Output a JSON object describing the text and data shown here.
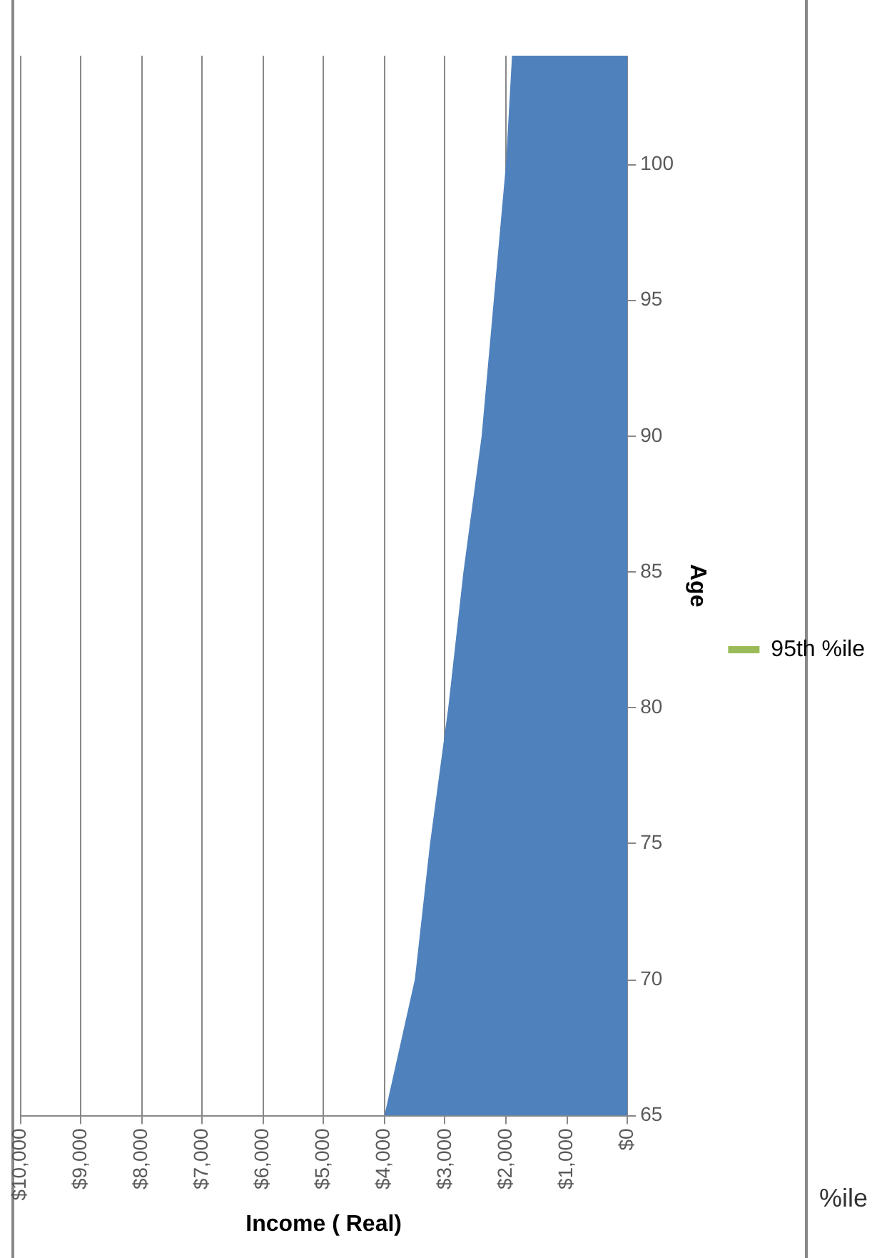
{
  "chart_data": {
    "type": "area",
    "orientation": "horizontal",
    "xlabel": "Income ( Real)",
    "ylabel": "Age",
    "x": [
      65,
      70,
      75,
      80,
      85,
      90,
      95,
      100,
      104
    ],
    "series": [
      {
        "color": "#4f81bd",
        "values": [
          4000,
          3500,
          3250,
          2950,
          2700,
          2400,
          2200,
          2000,
          1900
        ]
      },
      {
        "type": "line",
        "name": "95th %ile",
        "color": "#9bbb59",
        "values": [
          null,
          null,
          null,
          null,
          null,
          null,
          null,
          null,
          null
        ]
      }
    ],
    "ylim": [
      65,
      104
    ],
    "yticks": [
      65,
      70,
      75,
      80,
      85,
      90,
      95,
      100
    ],
    "xlim": [
      10000,
      0
    ],
    "xticks": [
      {
        "value": 0,
        "label": "$0"
      },
      {
        "value": 1000,
        "label": "$1,000"
      },
      {
        "value": 2000,
        "label": "$2,000"
      },
      {
        "value": 3000,
        "label": "$3,000"
      },
      {
        "value": 4000,
        "label": "$4,000"
      },
      {
        "value": 5000,
        "label": "$5,000"
      },
      {
        "value": 6000,
        "label": "$6,000"
      },
      {
        "value": 7000,
        "label": "$7,000"
      },
      {
        "value": 8000,
        "label": "$8,000"
      },
      {
        "value": 9000,
        "label": "$9,000"
      },
      {
        "value": 10000,
        "label": "$10,000"
      }
    ],
    "grid": "x",
    "legend": "right",
    "marker": "none",
    "annotations": [
      "%ile"
    ]
  }
}
